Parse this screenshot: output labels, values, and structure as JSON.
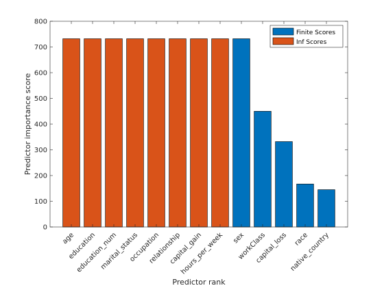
{
  "chart_data": {
    "type": "bar",
    "categories": [
      "age",
      "education",
      "education_num",
      "marital_status",
      "occupation",
      "relationship",
      "capital_gain",
      "hours_per_week",
      "sex",
      "workClass",
      "capital_loss",
      "race",
      "native_country"
    ],
    "values": [
      732,
      732,
      732,
      732,
      732,
      732,
      732,
      732,
      732,
      450,
      332,
      167,
      145
    ],
    "bar_series": [
      "Inf Scores",
      "Inf Scores",
      "Inf Scores",
      "Inf Scores",
      "Inf Scores",
      "Inf Scores",
      "Inf Scores",
      "Inf Scores",
      "Finite Scores",
      "Finite Scores",
      "Finite Scores",
      "Finite Scores",
      "Finite Scores"
    ],
    "series": [
      {
        "name": "Finite Scores",
        "color": "#0072BD"
      },
      {
        "name": "Inf Scores",
        "color": "#D95319"
      }
    ],
    "title": "",
    "xlabel": "Predictor rank",
    "ylabel": "Predictor importance score",
    "ylim": [
      0,
      800
    ],
    "yticks": [
      0,
      100,
      200,
      300,
      400,
      500,
      600,
      700,
      800
    ],
    "grid": false,
    "legend_position": "top-right"
  }
}
